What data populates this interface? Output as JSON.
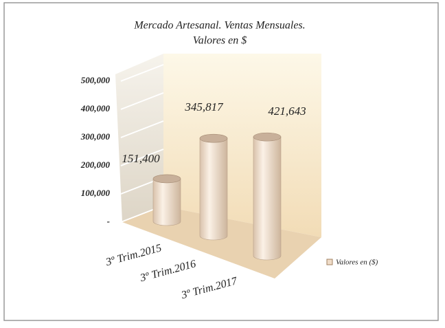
{
  "chart_data": {
    "type": "bar",
    "title": "Mercado Artesanal. Ventas Mensuales.",
    "subtitle": "Valores en $",
    "categories": [
      "3º Trim.2015",
      "3º Trim.2016",
      "3º Trim.2017"
    ],
    "series": [
      {
        "name": "Valores en ($)",
        "color": "#efdcc8",
        "values": [
          151400,
          345817,
          421643
        ],
        "value_labels": [
          "151,400",
          "345,817",
          "421,643"
        ]
      }
    ],
    "ylim": [
      0,
      500000
    ],
    "yticks": [
      {
        "value": 0,
        "label": "-"
      },
      {
        "value": 100000,
        "label": "100,000"
      },
      {
        "value": 200000,
        "label": "200,000"
      },
      {
        "value": 300000,
        "label": "300,000"
      },
      {
        "value": 400000,
        "label": "400,000"
      },
      {
        "value": 500000,
        "label": "500,000"
      }
    ],
    "grid": true,
    "legend": "right"
  }
}
